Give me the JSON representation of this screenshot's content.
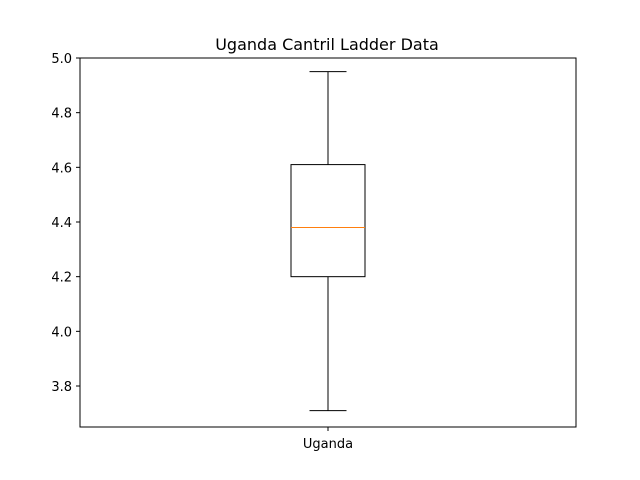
{
  "chart_data": {
    "type": "box",
    "title": "Uganda Cantril Ladder Data",
    "xlabel": "",
    "ylabel": "",
    "categories": [
      "Uganda"
    ],
    "series": [
      {
        "name": "Uganda",
        "whisker_low": 3.71,
        "q1": 4.2,
        "median": 4.38,
        "q3": 4.61,
        "whisker_high": 4.95
      }
    ],
    "ylim": [
      3.65,
      5.0
    ],
    "yticks": [
      3.8,
      4.0,
      4.2,
      4.4,
      4.6,
      4.8,
      5.0
    ],
    "ytick_labels": [
      "3.8",
      "4.0",
      "4.2",
      "4.4",
      "4.6",
      "4.8",
      "5.0"
    ],
    "grid": false,
    "colors": {
      "box": "#000000",
      "median": "#ff7f0e"
    }
  }
}
